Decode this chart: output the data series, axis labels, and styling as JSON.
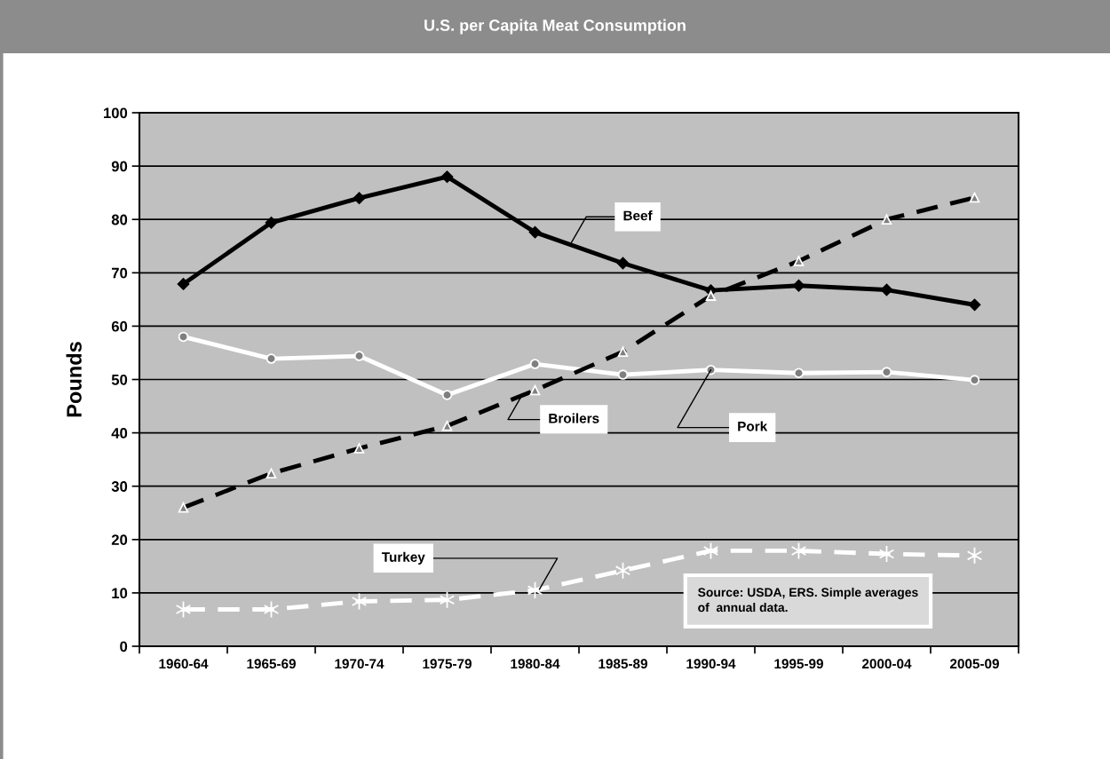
{
  "chart_data": {
    "type": "line",
    "title": "U.S. per Capita Meat Consumption",
    "ylabel": "Pounds",
    "categories": [
      "1960-64",
      "1965-69",
      "1970-74",
      "1975-79",
      "1980-84",
      "1985-89",
      "1990-94",
      "1995-99",
      "2000-04",
      "2005-09"
    ],
    "series": [
      {
        "name": "Beef",
        "color": "#000000",
        "marker": "diamond",
        "line_style": "solid",
        "values": [
          67.9,
          79.4,
          84.0,
          88.0,
          77.6,
          71.8,
          66.7,
          67.6,
          66.8,
          64.0
        ]
      },
      {
        "name": "Pork",
        "color": "#ffffff",
        "marker": "circle",
        "line_style": "solid",
        "values": [
          58.0,
          53.9,
          54.4,
          47.1,
          52.9,
          50.9,
          51.8,
          51.2,
          51.4,
          49.9
        ]
      },
      {
        "name": "Broilers",
        "color": "#000000",
        "marker": "triangle",
        "line_style": "dashed",
        "values": [
          26.0,
          32.4,
          37.1,
          41.3,
          48.0,
          55.2,
          65.7,
          72.2,
          80.0,
          84.1
        ]
      },
      {
        "name": "Turkey",
        "color": "#ffffff",
        "marker": "cross",
        "line_style": "dashed",
        "values": [
          6.9,
          6.9,
          8.4,
          8.7,
          10.5,
          14.2,
          17.9,
          17.9,
          17.3,
          17.0
        ]
      }
    ],
    "ylim": [
      0,
      100
    ],
    "yticks": [
      0,
      10,
      20,
      30,
      40,
      50,
      60,
      70,
      80,
      90,
      100
    ],
    "grid": "y",
    "legend": false,
    "annotations": [
      "Source: USDA, ERS. Simple averages\nof  annual data."
    ]
  }
}
